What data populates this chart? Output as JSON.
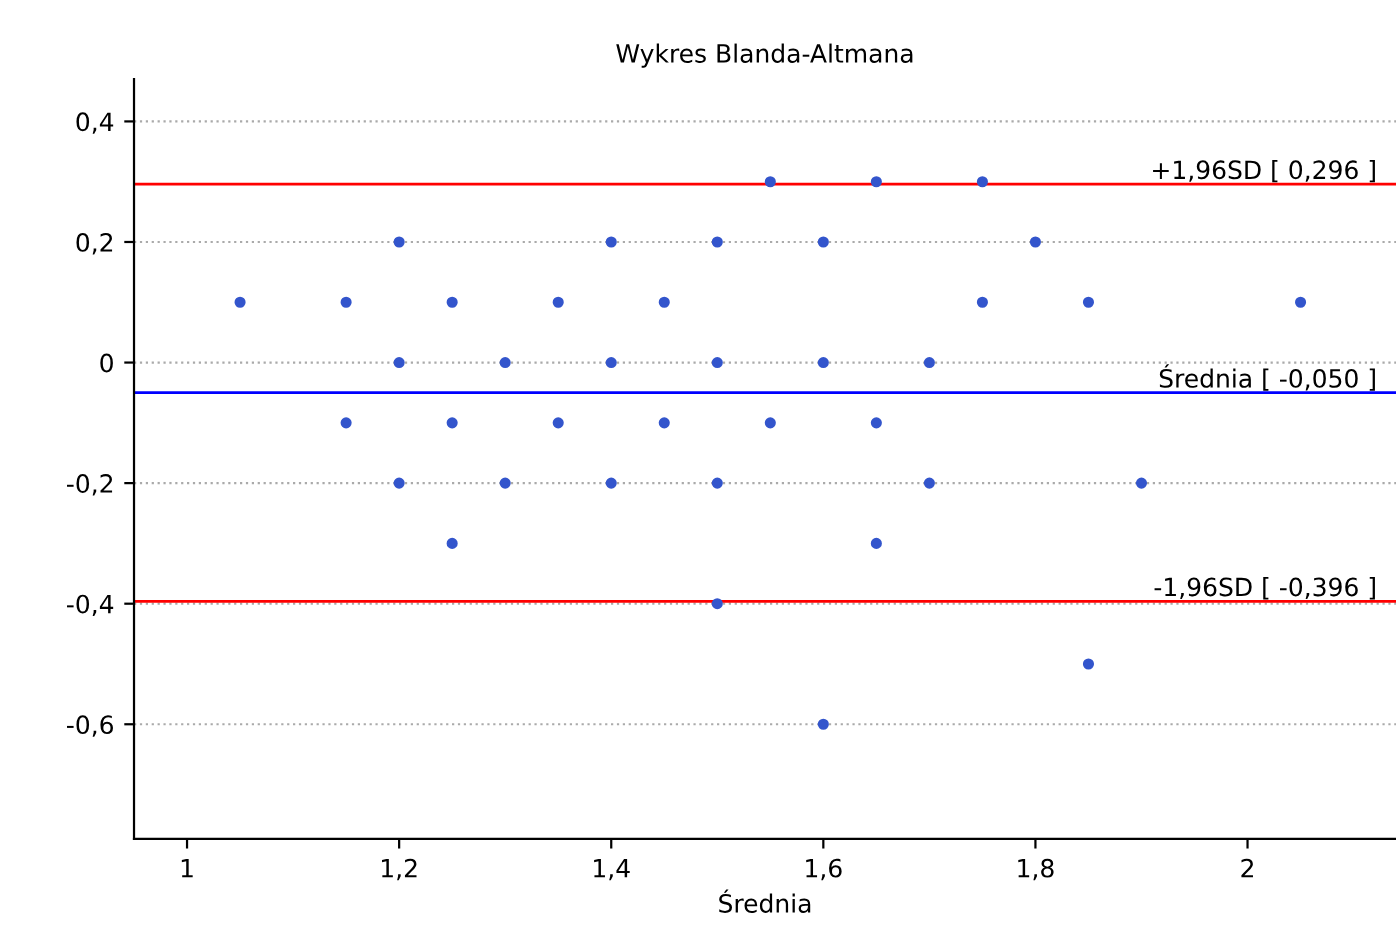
{
  "chart_data": {
    "type": "scatter",
    "title": "Wykres Blanda-Altmana",
    "xlabel": "Średnia",
    "x": [
      1.55,
      1.65,
      1.75,
      1.2,
      1.4,
      1.5,
      1.6,
      1.8,
      1.05,
      1.15,
      1.25,
      1.35,
      1.45,
      1.75,
      1.85,
      2.05,
      1.2,
      1.3,
      1.4,
      1.5,
      1.6,
      1.7,
      1.15,
      1.25,
      1.35,
      1.45,
      1.55,
      1.65,
      1.2,
      1.3,
      1.4,
      1.5,
      1.7,
      1.9,
      1.25,
      1.65,
      1.5,
      1.85,
      1.6
    ],
    "series": [
      {
        "color": "#3355cc",
        "values": [
          0.3,
          0.3,
          0.3,
          0.2,
          0.2,
          0.2,
          0.2,
          0.2,
          0.1,
          0.1,
          0.1,
          0.1,
          0.1,
          0.1,
          0.1,
          0.1,
          0,
          0,
          0,
          0,
          0,
          0,
          -0.1,
          -0.1,
          -0.1,
          -0.1,
          -0.1,
          -0.1,
          -0.2,
          -0.2,
          -0.2,
          -0.2,
          -0.2,
          -0.2,
          -0.3,
          -0.3,
          -0.4,
          -0.5,
          -0.6
        ]
      }
    ],
    "marker": "circle",
    "xlim": [
      0.95,
      2.14
    ],
    "ylim": [
      -0.79,
      0.47
    ],
    "xticks": [
      1,
      {
        "value": 1.2,
        "label": "1,2"
      },
      {
        "value": 1.4,
        "label": "1,4"
      },
      {
        "value": 1.6,
        "label": "1,6"
      },
      {
        "value": 1.8,
        "label": "1,8"
      },
      2
    ],
    "yticks": [
      {
        "value": -0.6,
        "label": "-0,6"
      },
      {
        "value": -0.4,
        "label": "-0,4"
      },
      {
        "value": -0.2,
        "label": "-0,2"
      },
      0,
      {
        "value": 0.2,
        "label": "0,2"
      },
      {
        "value": 0.4,
        "label": "0,4"
      }
    ],
    "grid": "y",
    "ref_lines": [
      {
        "axis": "y",
        "value": 0.296,
        "label": "+1,96SD [ 0,296 ]",
        "color": "#ff0000"
      },
      {
        "axis": "y",
        "value": -0.05,
        "label": "Średnia [ -0,050 ]",
        "color": "#0000ff"
      },
      {
        "axis": "y",
        "value": -0.396,
        "label": "-1,96SD [ -0,396 ]",
        "color": "#ff0000"
      }
    ]
  }
}
